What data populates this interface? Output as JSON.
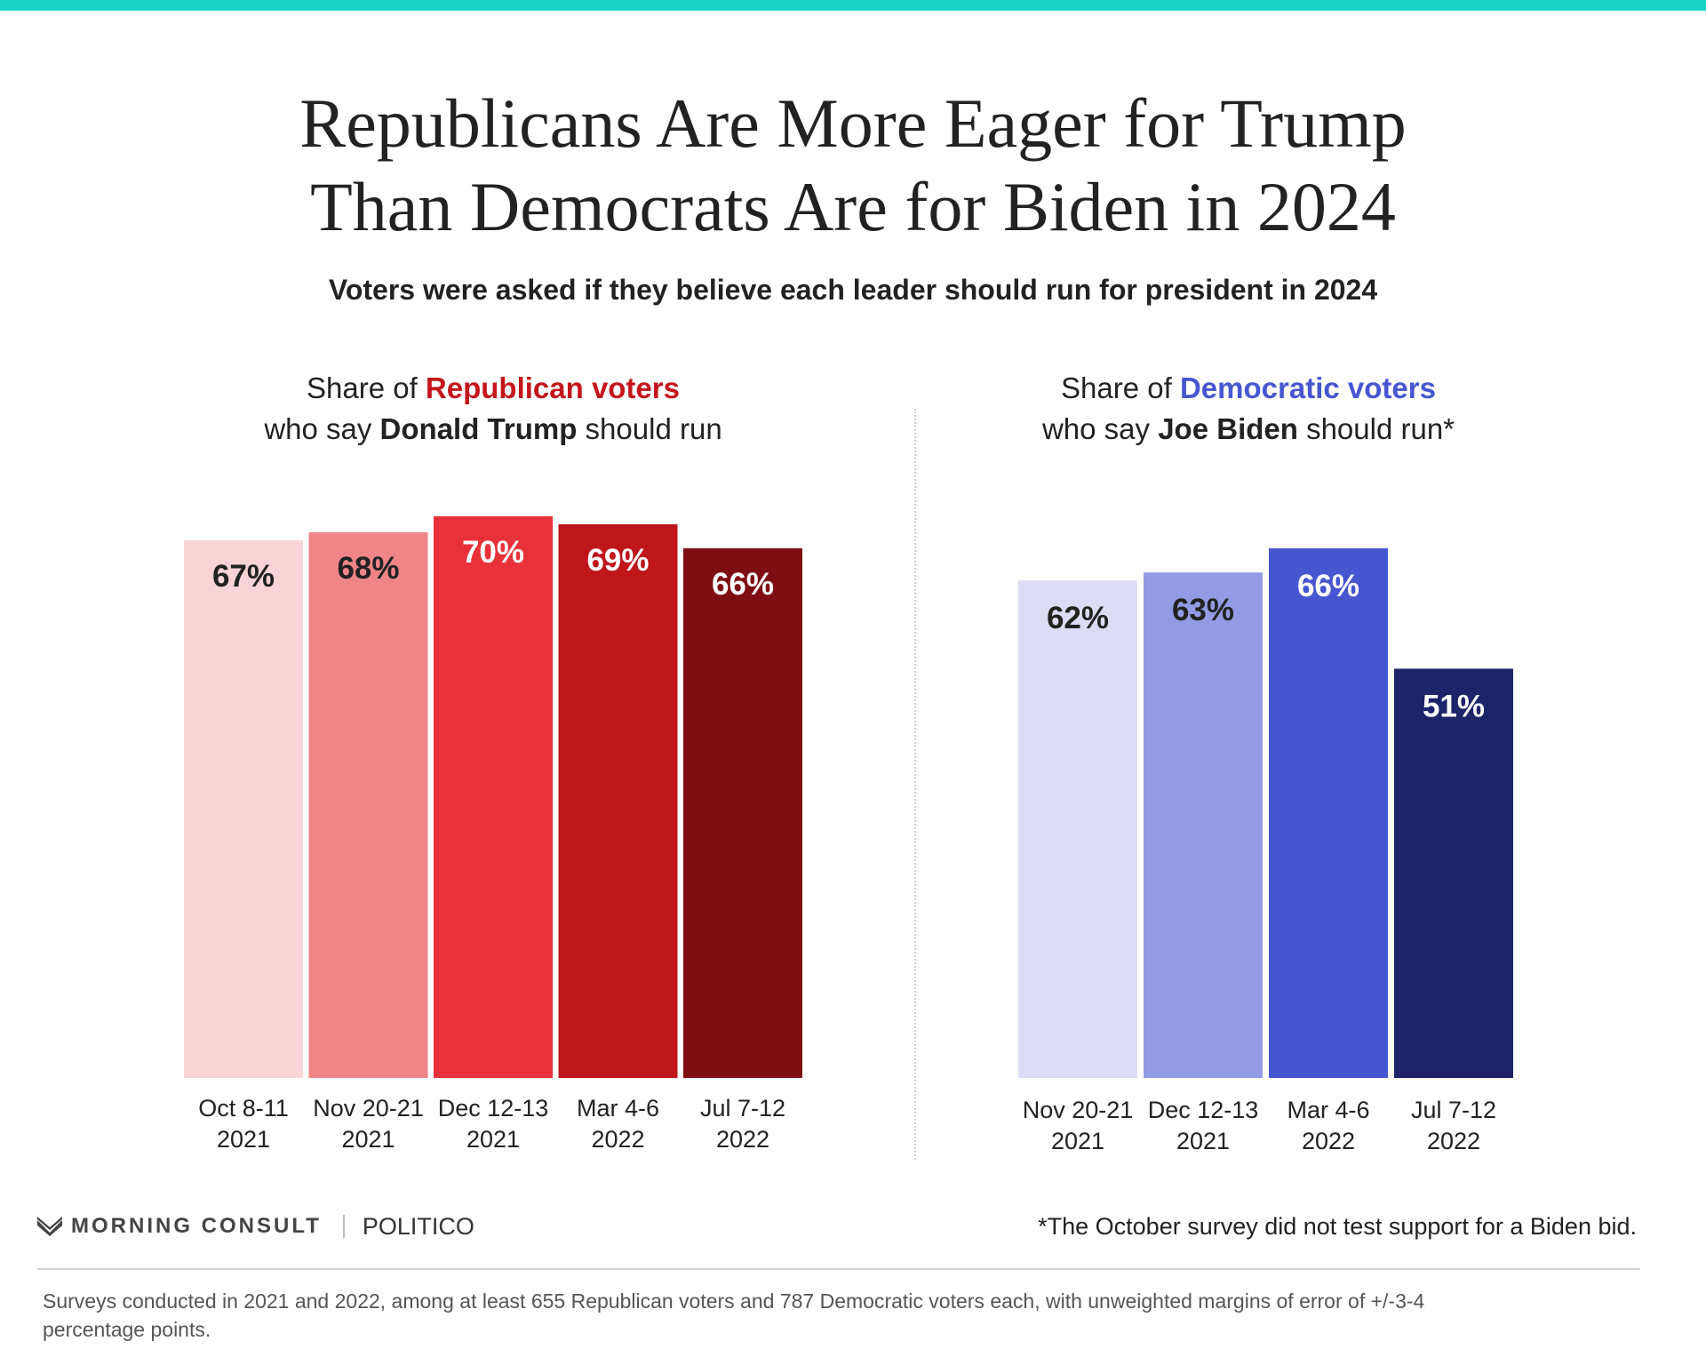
{
  "colors": {
    "top_bar": "#19d3c5",
    "republican_accent": "#c3161c",
    "democratic_accent": "#4656d1"
  },
  "title": {
    "line1": "Republicans Are More Eager for Trump",
    "line2": "Than Democrats Are for Biden in 2024"
  },
  "subtitle": "Voters were asked if they believe each leader should run for president in 2024",
  "left_panel": {
    "prefix": "Share of ",
    "group": "Republican voters",
    "who_say": "who say ",
    "person": "Donald Trump",
    "suffix": " should run"
  },
  "right_panel": {
    "prefix": "Share of ",
    "group": "Democratic voters",
    "who_say": "who say ",
    "person": "Joe Biden",
    "suffix": " should run*"
  },
  "chart_data": [
    {
      "type": "bar",
      "categories": [
        [
          "Oct 8-11",
          "2021"
        ],
        [
          "Nov 20-21",
          "2021"
        ],
        [
          "Dec 12-13",
          "2021"
        ],
        [
          "Mar 4-6",
          "2022"
        ],
        [
          "Jul 7-12",
          "2022"
        ]
      ],
      "values": [
        67,
        68,
        70,
        69,
        66
      ],
      "labels": [
        "67%",
        "68%",
        "70%",
        "69%",
        "66%"
      ],
      "colors": [
        "#f9d4d6",
        "#f08587",
        "#e8313a",
        "#be161b",
        "#7f0e12"
      ],
      "label_colors": [
        "#222222",
        "#222222",
        "#ffffff",
        "#ffffff",
        "#ffffff"
      ],
      "ylim": [
        0,
        70
      ],
      "grid": false
    },
    {
      "type": "bar",
      "categories": [
        [
          "Nov 20-21",
          "2021"
        ],
        [
          "Dec 12-13",
          "2021"
        ],
        [
          "Mar 4-6",
          "2022"
        ],
        [
          "Jul 7-12",
          "2022"
        ]
      ],
      "values": [
        62,
        63,
        66,
        51
      ],
      "labels": [
        "62%",
        "63%",
        "66%",
        "51%"
      ],
      "colors": [
        "#dcdcf6",
        "#929be3",
        "#4656d1",
        "#1e2469"
      ],
      "label_colors": [
        "#222222",
        "#222222",
        "#ffffff",
        "#ffffff"
      ],
      "ylim": [
        0,
        70
      ],
      "grid": false
    }
  ],
  "footer": {
    "brand": "MORNING CONSULT",
    "partner": "POLITICO",
    "footnote": "*The October survey did not test support for a Biden bid.",
    "source": "Surveys conducted in 2021 and 2022, among at least 655 Republican voters and 787 Democratic voters each, with unweighted margins of error of +/-3-4 percentage points."
  }
}
